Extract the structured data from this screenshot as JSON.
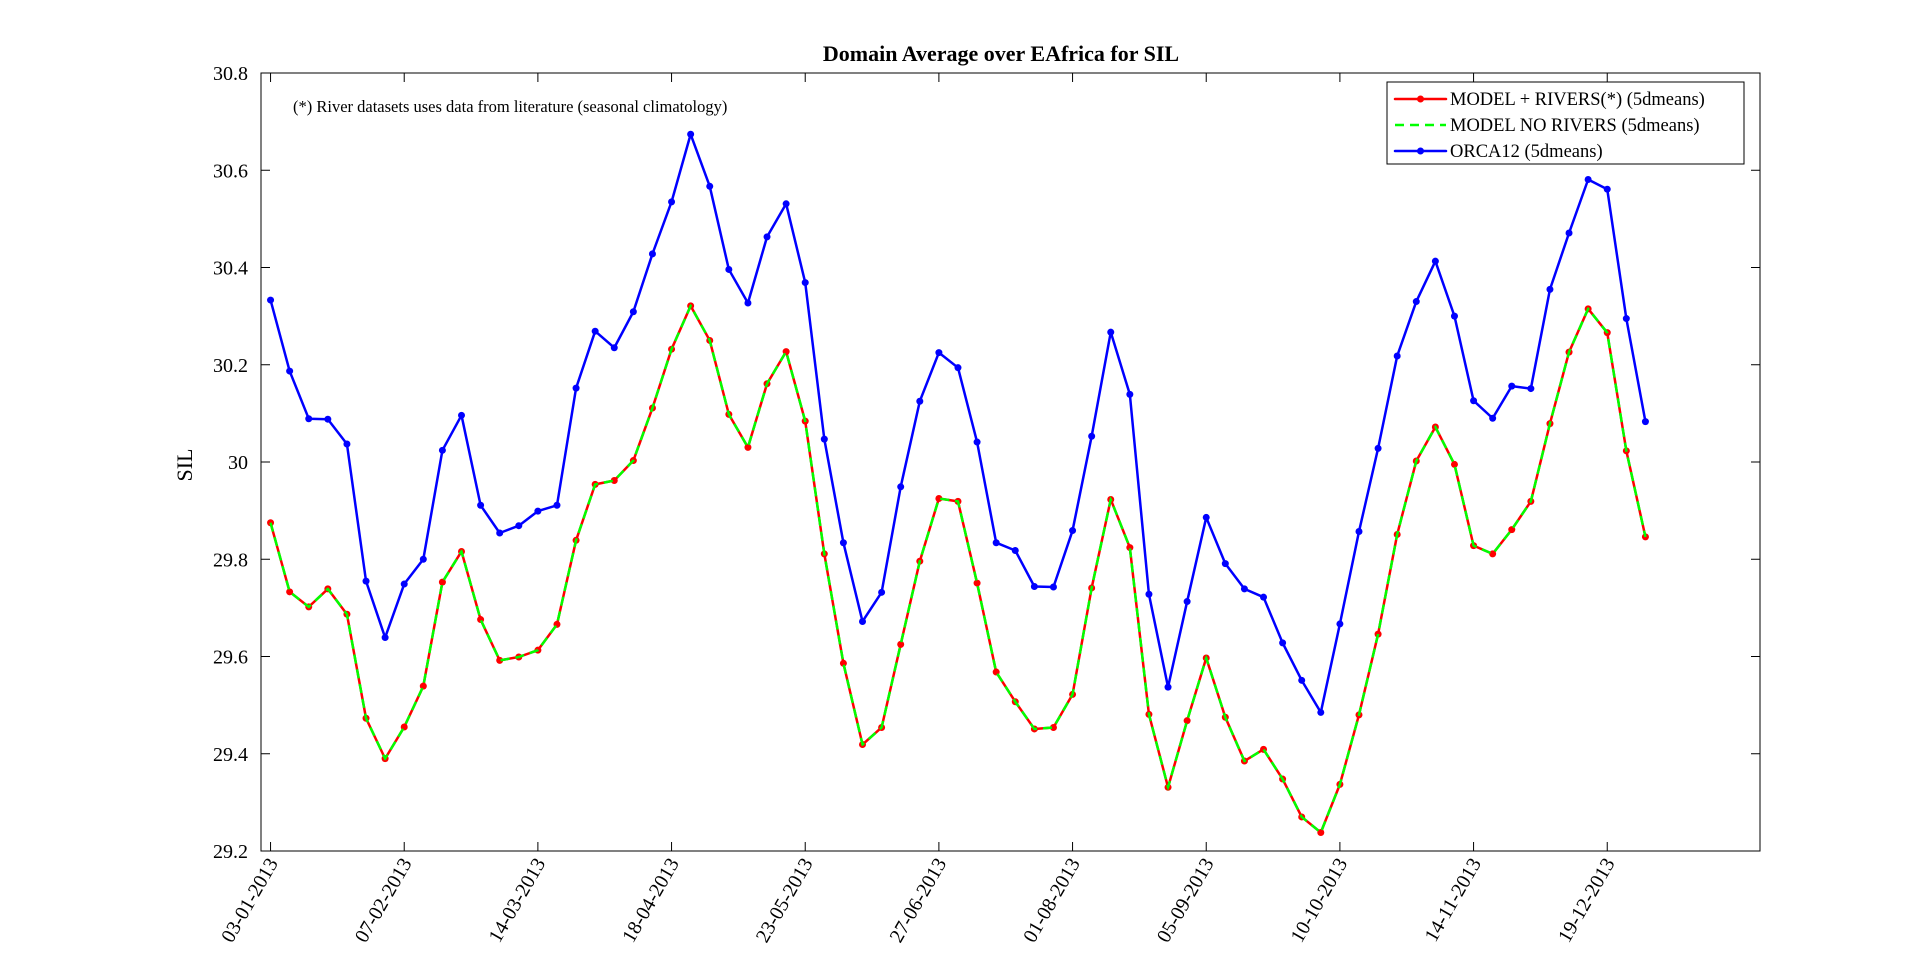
{
  "chart_data": {
    "type": "line",
    "title": "Domain Average over EAfrica for SIL",
    "xlabel": "",
    "ylabel": "SIL",
    "annotation": "(*) River datasets uses data from literature (seasonal climatology)",
    "ylim": [
      29.2,
      30.8
    ],
    "yticks": [
      29.2,
      29.4,
      29.6,
      29.8,
      30,
      30.2,
      30.4,
      30.6,
      30.8
    ],
    "ytick_labels": [
      "29.2",
      "29.4",
      "29.6",
      "29.8",
      "30",
      "30.2",
      "30.4",
      "30.6",
      "30.8"
    ],
    "x_step_days": 5,
    "xlim_index": [
      -0.5,
      78
    ],
    "xtick_index": [
      0,
      7,
      14,
      21,
      28,
      35,
      42,
      49,
      56,
      63,
      70
    ],
    "xtick_labels": [
      "03-01-2013",
      "07-02-2013",
      "14-03-2013",
      "18-04-2013",
      "23-05-2013",
      "27-06-2013",
      "01-08-2013",
      "05-09-2013",
      "10-10-2013",
      "14-11-2013",
      "19-12-2013"
    ],
    "grid": false,
    "legend_position": "top-right",
    "series": [
      {
        "name": "MODEL + RIVERS(*) (5dmeans)",
        "color": "#ff0000",
        "style": "solid-dots",
        "values": [
          29.875,
          29.733,
          29.702,
          29.739,
          29.687,
          29.473,
          29.39,
          29.455,
          29.539,
          29.753,
          29.816,
          29.676,
          29.592,
          29.599,
          29.613,
          29.666,
          29.839,
          29.954,
          29.962,
          30.003,
          30.111,
          30.232,
          30.321,
          30.25,
          30.098,
          30.03,
          30.161,
          30.227,
          30.084,
          29.811,
          29.586,
          29.419,
          29.454,
          29.625,
          29.796,
          29.925,
          29.919,
          29.751,
          29.568,
          29.507,
          29.451,
          29.454,
          29.522,
          29.741,
          29.923,
          29.824,
          29.481,
          29.331,
          29.468,
          29.597,
          29.475,
          29.385,
          29.409,
          29.348,
          29.27,
          29.238,
          29.337,
          29.48,
          29.646,
          29.851,
          30.002,
          30.072,
          29.995,
          29.828,
          29.811,
          29.861,
          29.919,
          30.079,
          30.226,
          30.315,
          30.266,
          30.023,
          29.846
        ]
      },
      {
        "name": "MODEL NO RIVERS (5dmeans)",
        "color": "#00ff00",
        "style": "dashed",
        "values": [
          29.875,
          29.733,
          29.702,
          29.739,
          29.687,
          29.473,
          29.39,
          29.455,
          29.539,
          29.753,
          29.816,
          29.676,
          29.592,
          29.599,
          29.613,
          29.666,
          29.839,
          29.954,
          29.962,
          30.003,
          30.111,
          30.232,
          30.321,
          30.25,
          30.098,
          30.03,
          30.161,
          30.227,
          30.084,
          29.811,
          29.586,
          29.419,
          29.454,
          29.625,
          29.796,
          29.925,
          29.919,
          29.751,
          29.568,
          29.507,
          29.451,
          29.454,
          29.522,
          29.741,
          29.923,
          29.824,
          29.481,
          29.331,
          29.468,
          29.597,
          29.475,
          29.385,
          29.409,
          29.348,
          29.27,
          29.238,
          29.337,
          29.48,
          29.646,
          29.851,
          30.002,
          30.072,
          29.995,
          29.828,
          29.811,
          29.861,
          29.919,
          30.079,
          30.226,
          30.315,
          30.266,
          30.023,
          29.846
        ]
      },
      {
        "name": "ORCA12 (5dmeans)",
        "color": "#0000ff",
        "style": "solid-dots",
        "values": [
          30.333,
          30.187,
          30.089,
          30.088,
          30.037,
          29.755,
          29.639,
          29.749,
          29.8,
          30.024,
          30.096,
          29.911,
          29.854,
          29.869,
          29.899,
          29.911,
          30.152,
          30.269,
          30.235,
          30.309,
          30.428,
          30.535,
          30.674,
          30.567,
          30.396,
          30.327,
          30.463,
          30.531,
          30.369,
          30.047,
          29.834,
          29.672,
          29.732,
          29.949,
          30.125,
          30.225,
          30.194,
          30.041,
          29.834,
          29.818,
          29.744,
          29.743,
          29.859,
          30.053,
          30.267,
          30.139,
          29.728,
          29.537,
          29.713,
          29.886,
          29.791,
          29.739,
          29.722,
          29.628,
          29.551,
          29.485,
          29.667,
          29.857,
          30.028,
          30.218,
          30.33,
          30.413,
          30.3,
          30.126,
          30.09,
          30.156,
          30.151,
          30.355,
          30.471,
          30.581,
          30.561,
          30.295,
          30.083
        ]
      }
    ]
  }
}
